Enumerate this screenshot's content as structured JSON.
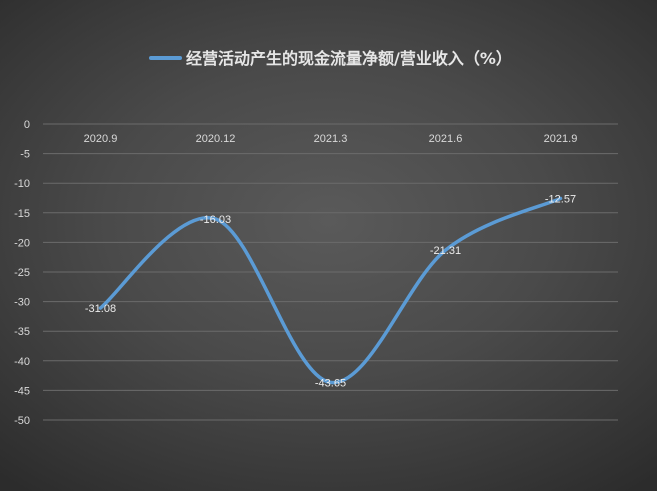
{
  "chart_data": {
    "type": "line",
    "title": "经营活动产生的现金流量净额/营业收入（%）",
    "categories": [
      "2020.9",
      "2020.12",
      "2021.3",
      "2021.6",
      "2021.9"
    ],
    "series": [
      {
        "name": "经营活动产生的现金流量净额/营业收入（%）",
        "values": [
          -31.08,
          -16.03,
          -43.65,
          -21.31,
          -12.57
        ],
        "color": "#5b9bd5"
      }
    ],
    "y_ticks": [
      "0",
      "-5",
      "-10",
      "-15",
      "-20",
      "-25",
      "-30",
      "-35",
      "-40",
      "-45",
      "-50"
    ],
    "ylim": [
      -50,
      0
    ],
    "grid": true,
    "legend": "top",
    "smooth": true
  }
}
